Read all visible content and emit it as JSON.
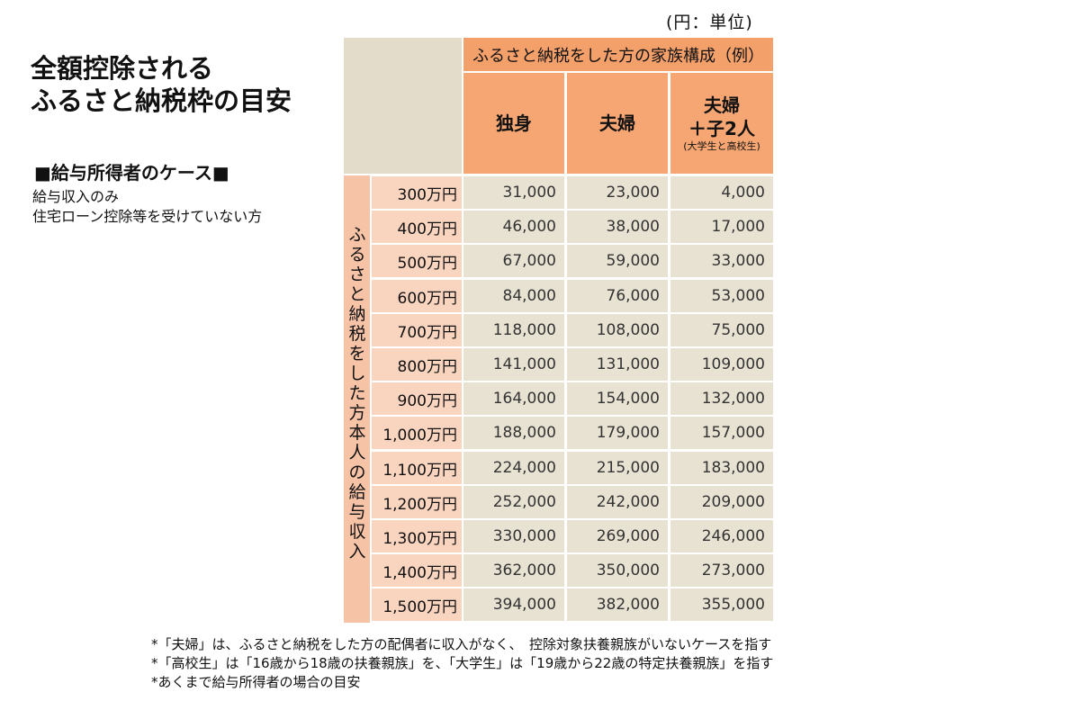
{
  "unit_label": "(円：単位)",
  "title": {
    "line1": "全額控除される",
    "line2": "ふるさと納税枠の目安"
  },
  "case": {
    "heading": "■給与所得者のケース■",
    "lines": [
      "給与収入のみ",
      "住宅ローン控除等を受けていない方"
    ]
  },
  "table": {
    "family_header": "ふるさと納税をした方の家族構成（例）",
    "columns": [
      {
        "label": "独身",
        "sub": ""
      },
      {
        "label": "夫婦",
        "sub": ""
      },
      {
        "label": "夫婦\n＋子2人",
        "sub": "(大学生と高校生)"
      }
    ],
    "side_label": "ふるさと納税をした方本人の給与収入",
    "rows": [
      {
        "income": "300万円",
        "values": [
          "31,000",
          "23,000",
          "4,000"
        ]
      },
      {
        "income": "400万円",
        "values": [
          "46,000",
          "38,000",
          "17,000"
        ]
      },
      {
        "income": "500万円",
        "values": [
          "67,000",
          "59,000",
          "33,000"
        ]
      },
      {
        "income": "600万円",
        "values": [
          "84,000",
          "76,000",
          "53,000"
        ]
      },
      {
        "income": "700万円",
        "values": [
          "118,000",
          "108,000",
          "75,000"
        ]
      },
      {
        "income": "800万円",
        "values": [
          "141,000",
          "131,000",
          "109,000"
        ]
      },
      {
        "income": "900万円",
        "values": [
          "164,000",
          "154,000",
          "132,000"
        ]
      },
      {
        "income": "1,000万円",
        "values": [
          "188,000",
          "179,000",
          "157,000"
        ]
      },
      {
        "income": "1,100万円",
        "values": [
          "224,000",
          "215,000",
          "183,000"
        ]
      },
      {
        "income": "1,200万円",
        "values": [
          "252,000",
          "242,000",
          "209,000"
        ]
      },
      {
        "income": "1,300万円",
        "values": [
          "330,000",
          "269,000",
          "246,000"
        ]
      },
      {
        "income": "1,400万円",
        "values": [
          "362,000",
          "350,000",
          "273,000"
        ]
      },
      {
        "income": "1,500万円",
        "values": [
          "394,000",
          "382,000",
          "355,000"
        ]
      }
    ]
  },
  "notes": [
    "*「夫婦」は、ふるさと納税をした方の配偶者に収入がなく、　控除対象扶養親族がいないケースを指す",
    "*「高校生」は「16歳から18歳の扶養親族」を、「大学生」は「19歳から22歳の特定扶養親族」を指す",
    "*あくまで給与所得者の場合の目安"
  ],
  "colors": {
    "header_orange": "#f4a06a",
    "side_pink": "#f7c3a7",
    "cell_beige": "#e8e2d2"
  }
}
